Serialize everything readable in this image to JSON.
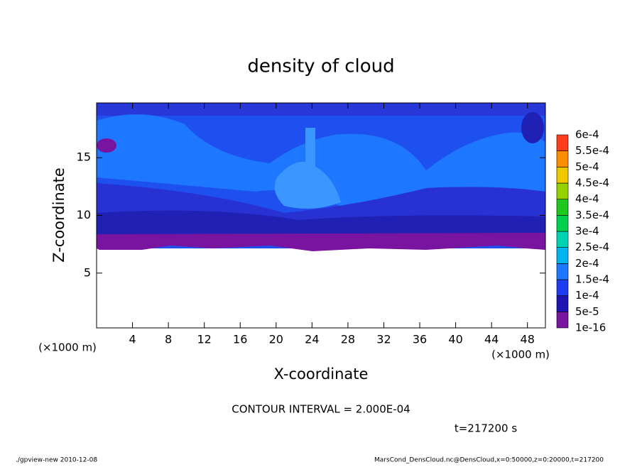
{
  "chart_data": {
    "type": "contour",
    "title": "density of cloud",
    "x_label": "X-coordinate",
    "y_label": "Z-coordinate",
    "x_unit": "(×1000 m)",
    "y_unit": "(×1000 m)",
    "xlim": [
      0,
      50
    ],
    "ylim": [
      0.25,
      19.75
    ],
    "xticks": [
      4,
      8,
      12,
      16,
      20,
      24,
      28,
      32,
      36,
      40,
      44,
      48
    ],
    "yticks": [
      5,
      10,
      15
    ],
    "levels": [
      {
        "value": 1e-16,
        "label": "1e-16"
      },
      {
        "value": 5e-05,
        "label": "5e-5"
      },
      {
        "value": 0.0001,
        "label": "1e-4"
      },
      {
        "value": 0.00015,
        "label": "1.5e-4"
      },
      {
        "value": 0.0002,
        "label": "2e-4"
      },
      {
        "value": 0.00025,
        "label": "2.5e-4"
      },
      {
        "value": 0.0003,
        "label": "3e-4"
      },
      {
        "value": 0.00035,
        "label": "3.5e-4"
      },
      {
        "value": 0.0004,
        "label": "4e-4"
      },
      {
        "value": 0.00045,
        "label": "4.5e-4"
      },
      {
        "value": 0.0005,
        "label": "5e-4"
      },
      {
        "value": 0.00055,
        "label": "5.5e-4"
      },
      {
        "value": 0.0006,
        "label": "6e-4"
      }
    ],
    "level_colors": [
      "#7814a0",
      "#1e14b4",
      "#1e3cf0",
      "#1e78ff",
      "#00b4f0",
      "#00d2b4",
      "#00d250",
      "#1ec81e",
      "#96d200",
      "#f0c800",
      "#ff8c00",
      "#ff3c1e",
      "#f08c8c"
    ],
    "contour_interval": "CONTOUR INTERVAL = 2.000E-04",
    "time_label": "t=217200 s",
    "footer_left": "./gpview-new   2010-12-08",
    "footer_right": "MarsCond_DensCloud.nc@DensCloud,x=0:50000,z=0:20000,t=217200"
  }
}
